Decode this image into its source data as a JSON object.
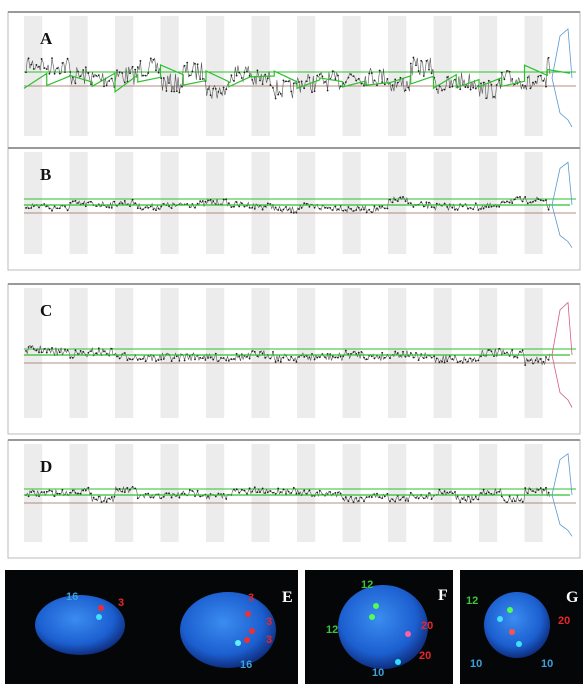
{
  "plots": [
    {
      "label": "A"
    },
    {
      "label": "B"
    },
    {
      "label": "C"
    },
    {
      "label": "D"
    }
  ],
  "fish": [
    {
      "label": "E",
      "probes": [
        {
          "text": "16",
          "color": "#3fa0dc"
        },
        {
          "text": "3",
          "color": "#e8262c"
        },
        {
          "text": "3",
          "color": "#e8262c"
        },
        {
          "text": "3",
          "color": "#e8262c"
        },
        {
          "text": "3",
          "color": "#e8262c"
        },
        {
          "text": "16",
          "color": "#3fa0dc"
        }
      ]
    },
    {
      "label": "F",
      "probes": [
        {
          "text": "12",
          "color": "#3cc43c"
        },
        {
          "text": "12",
          "color": "#3cc43c"
        },
        {
          "text": "20",
          "color": "#e8262c"
        },
        {
          "text": "20",
          "color": "#e8262c"
        },
        {
          "text": "10",
          "color": "#3fa0dc"
        }
      ]
    },
    {
      "label": "G",
      "probes": [
        {
          "text": "12",
          "color": "#3cc43c"
        },
        {
          "text": "20",
          "color": "#e8262c"
        },
        {
          "text": "10",
          "color": "#3fa0dc"
        },
        {
          "text": "10",
          "color": "#3fa0dc"
        }
      ]
    }
  ]
}
